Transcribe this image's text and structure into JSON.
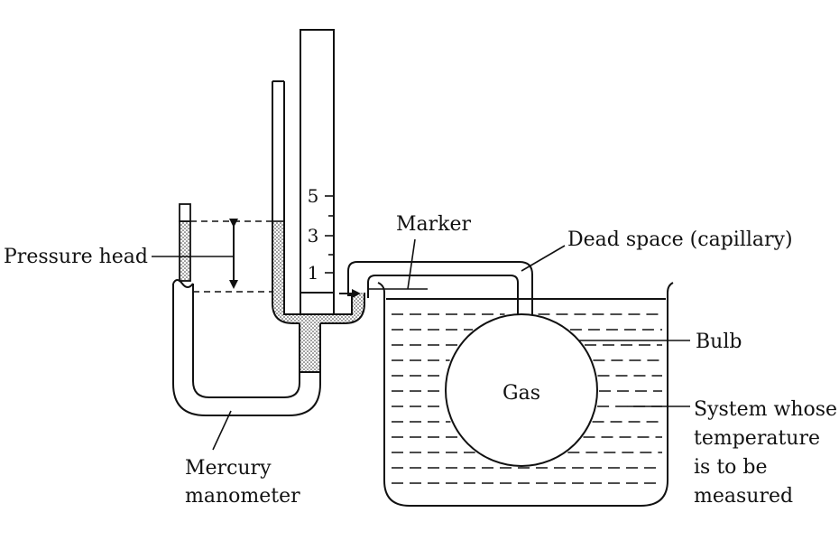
{
  "labels": {
    "pressure_head": "Pressure head",
    "marker": "Marker",
    "dead_space": "Dead space (capillary)",
    "bulb": "Bulb",
    "gas": "Gas",
    "system_lines": [
      "System whose",
      "temperature",
      "is to be",
      "measured"
    ],
    "manometer_lines": [
      "Mercury",
      "manometer"
    ]
  },
  "scale_ticks": [
    "5",
    "3",
    "1"
  ]
}
